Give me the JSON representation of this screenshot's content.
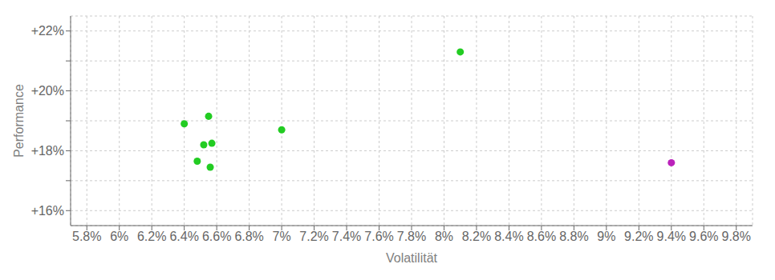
{
  "chart_data": {
    "type": "scatter",
    "xlabel": "Volatilität",
    "ylabel": "Performance",
    "xlim": [
      5.7,
      9.9
    ],
    "ylim": [
      15.5,
      22.5
    ],
    "xticks": [
      {
        "value": 5.8,
        "label": "5.8%"
      },
      {
        "value": 6.0,
        "label": "6%"
      },
      {
        "value": 6.2,
        "label": "6.2%"
      },
      {
        "value": 6.4,
        "label": "6.4%"
      },
      {
        "value": 6.6,
        "label": "6.6%"
      },
      {
        "value": 6.8,
        "label": "6.8%"
      },
      {
        "value": 7.0,
        "label": "7%"
      },
      {
        "value": 7.2,
        "label": "7.2%"
      },
      {
        "value": 7.4,
        "label": "7.4%"
      },
      {
        "value": 7.6,
        "label": "7.6%"
      },
      {
        "value": 7.8,
        "label": "7.8%"
      },
      {
        "value": 8.0,
        "label": "8%"
      },
      {
        "value": 8.2,
        "label": "8.2%"
      },
      {
        "value": 8.4,
        "label": "8.4%"
      },
      {
        "value": 8.6,
        "label": "8.6%"
      },
      {
        "value": 8.8,
        "label": "8.8%"
      },
      {
        "value": 9.0,
        "label": "9%"
      },
      {
        "value": 9.2,
        "label": "9.2%"
      },
      {
        "value": 9.4,
        "label": "9.4%"
      },
      {
        "value": 9.6,
        "label": "9.6%"
      },
      {
        "value": 9.8,
        "label": "9.8%"
      }
    ],
    "yticks": [
      {
        "value": 16,
        "label": "+16%"
      },
      {
        "value": 17,
        "label": ""
      },
      {
        "value": 18,
        "label": "+18%"
      },
      {
        "value": 19,
        "label": ""
      },
      {
        "value": 20,
        "label": "+20%"
      },
      {
        "value": 21,
        "label": ""
      },
      {
        "value": 22,
        "label": "+22%"
      }
    ],
    "grid": true,
    "series": [
      {
        "color": "#22cc22",
        "x": [
          6.55,
          6.4,
          7.0,
          6.52,
          6.57,
          6.48,
          6.56,
          8.1
        ],
        "values": [
          19.15,
          18.9,
          18.7,
          18.2,
          18.25,
          17.65,
          17.45,
          21.3
        ]
      },
      {
        "color": "#bb22bb",
        "x": [
          9.4
        ],
        "values": [
          17.6
        ]
      }
    ]
  }
}
